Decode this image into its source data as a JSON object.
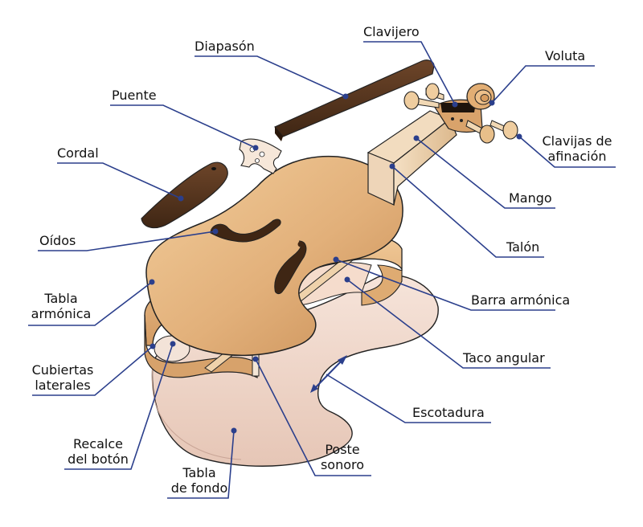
{
  "colors": {
    "leader": "#2b3f8c",
    "wood_light": "#e3b582",
    "wood_mid": "#c98f57",
    "ebony": "#5c3922",
    "back_plate": "#f0d9cc",
    "outline": "#222222"
  },
  "labels": {
    "diapason": "Diapasón",
    "clavijero": "Clavijero",
    "voluta": "Voluta",
    "puente": "Puente",
    "cordal": "Cordal",
    "clavijas_1": "Clavijas de",
    "clavijas_2": "afinación",
    "mango": "Mango",
    "oidos": "Oídos",
    "talon": "Talón",
    "tabla_armonica_1": "Tabla",
    "tabla_armonica_2": "armónica",
    "barra_armonica": "Barra armónica",
    "cubiertas_1": "Cubiertas",
    "cubiertas_2": "laterales",
    "taco_angular": "Taco angular",
    "escotadura": "Escotadura",
    "recalce_1": "Recalce",
    "recalce_2": "del botón",
    "poste_1": "Poste",
    "poste_2": "sonoro",
    "tabla_fondo_1": "Tabla",
    "tabla_fondo_2": "de fondo"
  }
}
